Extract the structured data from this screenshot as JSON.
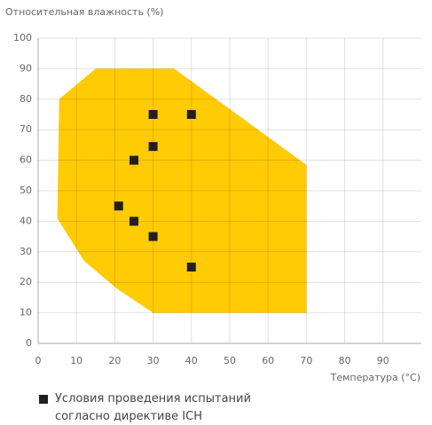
{
  "chart_data": {
    "type": "scatter",
    "ylabel": "Относительная влажность (%)",
    "xlabel": "Температура (°C)",
    "xlim": [
      0,
      100
    ],
    "xticks": [
      0,
      10,
      20,
      30,
      40,
      50,
      60,
      70,
      80,
      90
    ],
    "ylim": [
      0,
      100
    ],
    "yticks": [
      0,
      10,
      20,
      30,
      40,
      50,
      60,
      70,
      80,
      90,
      100
    ],
    "grid": true,
    "area": {
      "color": "#ffcb05",
      "x": [
        5,
        12,
        20.5,
        30,
        70,
        70,
        35.5,
        15,
        5.5
      ],
      "y": [
        41,
        27,
        18,
        10,
        10,
        58.5,
        90,
        90,
        80
      ]
    },
    "series": [
      {
        "name": "Условия проведения испытаний согласно директиве ICH",
        "color": "#231f20",
        "x": [
          30,
          40,
          30,
          25,
          21,
          25,
          30,
          40
        ],
        "y": [
          75,
          75,
          64.5,
          60,
          45,
          40,
          35,
          25
        ]
      }
    ]
  }
}
